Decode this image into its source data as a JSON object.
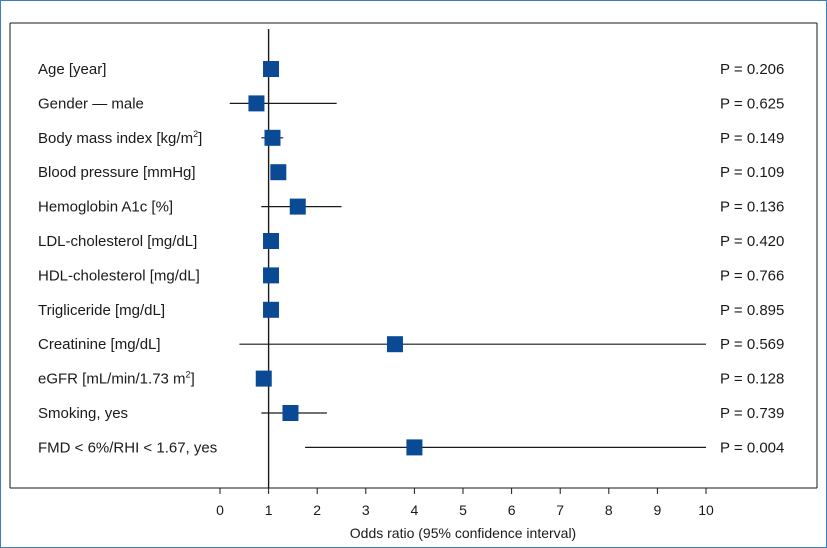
{
  "chart_data": {
    "type": "forest",
    "xlabel": "Odds ratio (95% confidence interval)",
    "xlim": [
      0,
      10
    ],
    "xticks": [
      0,
      1,
      2,
      3,
      4,
      5,
      6,
      7,
      8,
      9,
      10
    ],
    "reference_line": 1,
    "marker_color": "#0a4a94",
    "rows": [
      {
        "label": "Age [year]",
        "sup": "",
        "label_after": "",
        "or": 1.05,
        "ci": [
          null,
          null
        ],
        "p": "P = 0.206"
      },
      {
        "label": "Gender — male",
        "sup": "",
        "label_after": "",
        "or": 0.75,
        "ci": [
          0.2,
          2.4
        ],
        "p": "P = 0.625"
      },
      {
        "label": "Body mass index [kg/m",
        "sup": "2",
        "label_after": "]",
        "or": 1.08,
        "ci": [
          0.85,
          1.3
        ],
        "p": "P = 0.149"
      },
      {
        "label": "Blood pressure [mmHg]",
        "sup": "",
        "label_after": "",
        "or": 1.2,
        "ci": [
          null,
          null
        ],
        "p": "P = 0.109"
      },
      {
        "label": "Hemoglobin A1c [%]",
        "sup": "",
        "label_after": "",
        "or": 1.6,
        "ci": [
          0.85,
          2.5
        ],
        "p": "P = 0.136"
      },
      {
        "label": "LDL-cholesterol [mg/dL]",
        "sup": "",
        "label_after": "",
        "or": 1.05,
        "ci": [
          null,
          null
        ],
        "p": "P = 0.420"
      },
      {
        "label": "HDL-cholesterol [mg/dL]",
        "sup": "",
        "label_after": "",
        "or": 1.05,
        "ci": [
          null,
          null
        ],
        "p": "P = 0.766"
      },
      {
        "label": "Trigliceride [mg/dL]",
        "sup": "",
        "label_after": "",
        "or": 1.05,
        "ci": [
          null,
          null
        ],
        "p": "P = 0.895"
      },
      {
        "label": "Creatinine [mg/dL]",
        "sup": "",
        "label_after": "",
        "or": 3.6,
        "ci": [
          0.4,
          10
        ],
        "p": "P = 0.569"
      },
      {
        "label": "eGFR [mL/min/1.73 m",
        "sup": "2",
        "label_after": "]",
        "or": 0.9,
        "ci": [
          null,
          null
        ],
        "p": "P = 0.128"
      },
      {
        "label": "Smoking, yes",
        "sup": "",
        "label_after": "",
        "or": 1.45,
        "ci": [
          0.85,
          2.2
        ],
        "p": "P = 0.739"
      },
      {
        "label": "FMD < 6%/RHI < 1.67, yes",
        "sup": "",
        "label_after": "",
        "or": 4.0,
        "ci": [
          1.75,
          10
        ],
        "p": "P = 0.004"
      }
    ]
  }
}
